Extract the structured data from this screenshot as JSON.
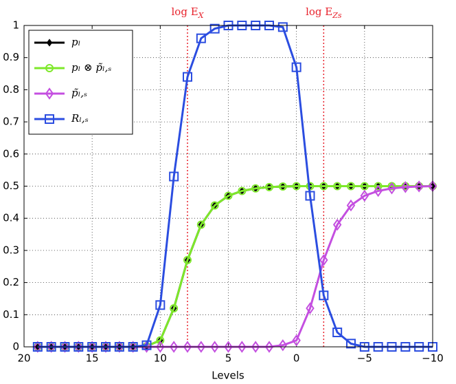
{
  "chart_data": {
    "type": "line",
    "xlabel": "Levels",
    "x": [
      19,
      18,
      17,
      16,
      15,
      14,
      13,
      12,
      11,
      10,
      9,
      8,
      7,
      6,
      5,
      4,
      3,
      2,
      1,
      0,
      -1,
      -2,
      -3,
      -4,
      -5,
      -6,
      -7,
      -8,
      -9,
      -10
    ],
    "xlim": [
      20,
      -10
    ],
    "xticks": [
      20,
      15,
      10,
      5,
      0,
      {
        "value": -5,
        "label": "−5"
      },
      {
        "value": -10,
        "label": "−10"
      }
    ],
    "ylim": [
      0,
      1
    ],
    "yticks": [
      0,
      0.1,
      0.2,
      0.3,
      0.4,
      0.5,
      0.6,
      0.7,
      0.8,
      0.9,
      1
    ],
    "grid": true,
    "legend": "upper-left",
    "vlines": [
      {
        "x": 8,
        "text": "log E",
        "subscript": "X",
        "color": "#e8212b"
      },
      {
        "x": -2,
        "text": "log E",
        "subscript": "Zs",
        "color": "#e8212b"
      }
    ],
    "series": [
      {
        "name": "pₗ",
        "color": "#000000",
        "marker": "diamond-filled",
        "values": [
          0,
          0,
          0,
          0,
          0,
          0,
          0,
          0,
          0.002,
          0.02,
          0.12,
          0.27,
          0.38,
          0.44,
          0.47,
          0.485,
          0.493,
          0.497,
          0.499,
          0.5,
          0.5,
          0.5,
          0.5,
          0.5,
          0.5,
          0.5,
          0.5,
          0.5,
          0.5,
          0.5
        ]
      },
      {
        "name": "pₗ ⊗ p̃ₗ,ₛ",
        "color": "#7ee82a",
        "marker": "circle",
        "values": [
          0,
          0,
          0,
          0,
          0,
          0,
          0,
          0,
          0.002,
          0.02,
          0.12,
          0.27,
          0.38,
          0.44,
          0.47,
          0.485,
          0.493,
          0.497,
          0.499,
          0.5,
          0.5,
          0.5,
          0.5,
          0.5,
          0.5,
          0.5,
          0.5,
          0.5,
          0.5,
          0.5
        ]
      },
      {
        "name": "p̃ₗ,ₛ",
        "color": "#c44fe0",
        "marker": "diamond",
        "values": [
          0,
          0,
          0,
          0,
          0,
          0,
          0,
          0,
          0,
          0,
          0,
          0,
          0,
          0,
          0,
          0,
          0,
          0,
          0.005,
          0.02,
          0.12,
          0.27,
          0.38,
          0.44,
          0.47,
          0.485,
          0.493,
          0.497,
          0.499,
          0.5
        ]
      },
      {
        "name": "Rₗ,ₛ",
        "color": "#2b4de0",
        "marker": "square",
        "values": [
          0,
          0,
          0,
          0,
          0,
          0,
          0,
          0,
          0.005,
          0.13,
          0.53,
          0.84,
          0.96,
          0.99,
          1,
          1,
          1,
          1,
          0.995,
          0.87,
          0.47,
          0.16,
          0.045,
          0.01,
          0,
          0,
          0,
          0,
          0,
          0
        ]
      }
    ]
  }
}
